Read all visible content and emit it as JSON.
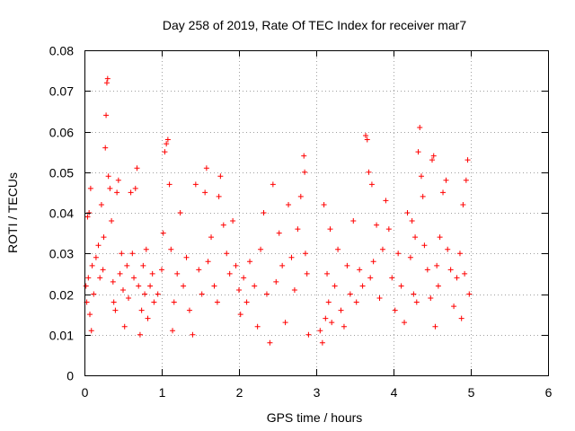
{
  "chart_data": {
    "type": "scatter",
    "title": "Day 258 of 2019, Rate Of TEC Index for receiver mar7",
    "xlabel": "GPS time / hours",
    "ylabel": "ROTI / TECUs",
    "xlim": [
      0,
      6
    ],
    "ylim": [
      0,
      0.08
    ],
    "xticks": [
      0,
      1,
      2,
      3,
      4,
      5,
      6
    ],
    "xtick_labels": [
      "0",
      "1",
      "2",
      "3",
      "4",
      "5",
      "6"
    ],
    "yticks": [
      0,
      0.01,
      0.02,
      0.03,
      0.04,
      0.05,
      0.06,
      0.07,
      0.08
    ],
    "ytick_labels": [
      "0",
      "0.01",
      "0.02",
      "0.03",
      "0.04",
      "0.05",
      "0.06",
      "0.07",
      "0.08"
    ],
    "grid": true,
    "marker": "+",
    "color": "#ff0000",
    "series": [
      {
        "name": "ROTI",
        "points": [
          [
            0.02,
            0.022
          ],
          [
            0.03,
            0.018
          ],
          [
            0.04,
            0.039
          ],
          [
            0.05,
            0.024
          ],
          [
            0.06,
            0.04
          ],
          [
            0.07,
            0.015
          ],
          [
            0.08,
            0.046
          ],
          [
            0.09,
            0.011
          ],
          [
            0.1,
            0.027
          ],
          [
            0.12,
            0.02
          ],
          [
            0.15,
            0.029
          ],
          [
            0.18,
            0.032
          ],
          [
            0.2,
            0.024
          ],
          [
            0.22,
            0.042
          ],
          [
            0.24,
            0.026
          ],
          [
            0.25,
            0.034
          ],
          [
            0.27,
            0.056
          ],
          [
            0.28,
            0.064
          ],
          [
            0.29,
            0.072
          ],
          [
            0.3,
            0.073
          ],
          [
            0.31,
            0.049
          ],
          [
            0.33,
            0.046
          ],
          [
            0.35,
            0.038
          ],
          [
            0.37,
            0.023
          ],
          [
            0.38,
            0.018
          ],
          [
            0.4,
            0.016
          ],
          [
            0.42,
            0.045
          ],
          [
            0.44,
            0.048
          ],
          [
            0.46,
            0.025
          ],
          [
            0.48,
            0.03
          ],
          [
            0.5,
            0.021
          ],
          [
            0.52,
            0.012
          ],
          [
            0.55,
            0.027
          ],
          [
            0.57,
            0.019
          ],
          [
            0.6,
            0.045
          ],
          [
            0.62,
            0.03
          ],
          [
            0.64,
            0.024
          ],
          [
            0.66,
            0.046
          ],
          [
            0.68,
            0.051
          ],
          [
            0.7,
            0.022
          ],
          [
            0.72,
            0.01
          ],
          [
            0.74,
            0.016
          ],
          [
            0.76,
            0.027
          ],
          [
            0.78,
            0.02
          ],
          [
            0.8,
            0.031
          ],
          [
            0.82,
            0.014
          ],
          [
            0.85,
            0.022
          ],
          [
            0.88,
            0.025
          ],
          [
            0.9,
            0.018
          ],
          [
            0.95,
            0.02
          ],
          [
            1.0,
            0.026
          ],
          [
            1.02,
            0.035
          ],
          [
            1.04,
            0.055
          ],
          [
            1.06,
            0.057
          ],
          [
            1.08,
            0.058
          ],
          [
            1.1,
            0.047
          ],
          [
            1.12,
            0.031
          ],
          [
            1.14,
            0.011
          ],
          [
            1.16,
            0.018
          ],
          [
            1.2,
            0.025
          ],
          [
            1.24,
            0.04
          ],
          [
            1.28,
            0.022
          ],
          [
            1.32,
            0.029
          ],
          [
            1.36,
            0.016
          ],
          [
            1.4,
            0.01
          ],
          [
            1.44,
            0.047
          ],
          [
            1.48,
            0.026
          ],
          [
            1.52,
            0.02
          ],
          [
            1.56,
            0.045
          ],
          [
            1.58,
            0.051
          ],
          [
            1.6,
            0.028
          ],
          [
            1.64,
            0.034
          ],
          [
            1.68,
            0.022
          ],
          [
            1.72,
            0.018
          ],
          [
            1.74,
            0.044
          ],
          [
            1.76,
            0.049
          ],
          [
            1.8,
            0.037
          ],
          [
            1.84,
            0.03
          ],
          [
            1.88,
            0.025
          ],
          [
            1.92,
            0.038
          ],
          [
            1.96,
            0.027
          ],
          [
            2.0,
            0.021
          ],
          [
            2.02,
            0.015
          ],
          [
            2.06,
            0.024
          ],
          [
            2.1,
            0.018
          ],
          [
            2.14,
            0.028
          ],
          [
            2.2,
            0.022
          ],
          [
            2.24,
            0.012
          ],
          [
            2.28,
            0.031
          ],
          [
            2.32,
            0.04
          ],
          [
            2.36,
            0.02
          ],
          [
            2.4,
            0.008
          ],
          [
            2.44,
            0.047
          ],
          [
            2.48,
            0.023
          ],
          [
            2.52,
            0.035
          ],
          [
            2.56,
            0.027
          ],
          [
            2.6,
            0.013
          ],
          [
            2.64,
            0.042
          ],
          [
            2.68,
            0.029
          ],
          [
            2.72,
            0.021
          ],
          [
            2.76,
            0.036
          ],
          [
            2.8,
            0.044
          ],
          [
            2.84,
            0.054
          ],
          [
            2.85,
            0.05
          ],
          [
            2.86,
            0.03
          ],
          [
            2.88,
            0.025
          ],
          [
            2.9,
            0.01
          ],
          [
            3.05,
            0.011
          ],
          [
            3.08,
            0.008
          ],
          [
            3.1,
            0.042
          ],
          [
            3.12,
            0.014
          ],
          [
            3.14,
            0.025
          ],
          [
            3.16,
            0.018
          ],
          [
            3.18,
            0.036
          ],
          [
            3.2,
            0.013
          ],
          [
            3.24,
            0.022
          ],
          [
            3.28,
            0.031
          ],
          [
            3.32,
            0.016
          ],
          [
            3.36,
            0.012
          ],
          [
            3.4,
            0.027
          ],
          [
            3.44,
            0.02
          ],
          [
            3.48,
            0.038
          ],
          [
            3.52,
            0.018
          ],
          [
            3.56,
            0.026
          ],
          [
            3.6,
            0.022
          ],
          [
            3.64,
            0.059
          ],
          [
            3.66,
            0.058
          ],
          [
            3.68,
            0.05
          ],
          [
            3.7,
            0.024
          ],
          [
            3.72,
            0.047
          ],
          [
            3.74,
            0.028
          ],
          [
            3.78,
            0.037
          ],
          [
            3.82,
            0.019
          ],
          [
            3.86,
            0.031
          ],
          [
            3.9,
            0.043
          ],
          [
            3.94,
            0.036
          ],
          [
            3.98,
            0.024
          ],
          [
            4.02,
            0.016
          ],
          [
            4.06,
            0.03
          ],
          [
            4.1,
            0.022
          ],
          [
            4.14,
            0.013
          ],
          [
            4.18,
            0.04
          ],
          [
            4.22,
            0.029
          ],
          [
            4.24,
            0.038
          ],
          [
            4.26,
            0.02
          ],
          [
            4.28,
            0.034
          ],
          [
            4.3,
            0.018
          ],
          [
            4.32,
            0.055
          ],
          [
            4.34,
            0.061
          ],
          [
            4.36,
            0.049
          ],
          [
            4.38,
            0.044
          ],
          [
            4.4,
            0.032
          ],
          [
            4.44,
            0.026
          ],
          [
            4.48,
            0.019
          ],
          [
            4.5,
            0.053
          ],
          [
            4.52,
            0.054
          ],
          [
            4.54,
            0.012
          ],
          [
            4.56,
            0.027
          ],
          [
            4.58,
            0.022
          ],
          [
            4.6,
            0.034
          ],
          [
            4.64,
            0.045
          ],
          [
            4.68,
            0.048
          ],
          [
            4.7,
            0.031
          ],
          [
            4.74,
            0.026
          ],
          [
            4.78,
            0.017
          ],
          [
            4.82,
            0.024
          ],
          [
            4.86,
            0.03
          ],
          [
            4.88,
            0.014
          ],
          [
            4.9,
            0.042
          ],
          [
            4.92,
            0.025
          ],
          [
            4.94,
            0.048
          ],
          [
            4.96,
            0.053
          ],
          [
            4.98,
            0.02
          ]
        ]
      }
    ]
  }
}
